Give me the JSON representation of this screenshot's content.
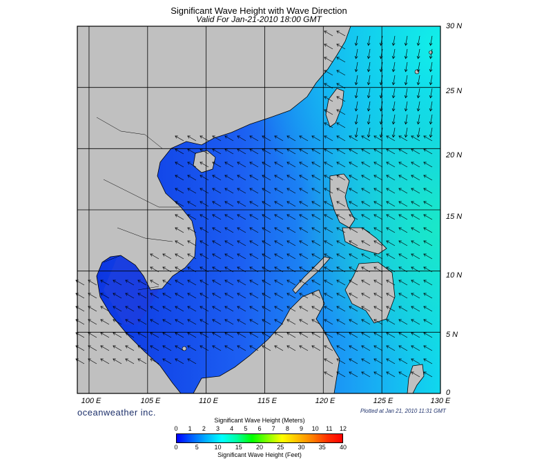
{
  "header": {
    "title": "Significant Wave Height with Wave Direction",
    "subtitle": "Valid For Jan-21-2010 18:00 GMT"
  },
  "map": {
    "lon_range": [
      99,
      130
    ],
    "lat_range": [
      0,
      30
    ],
    "grid_step": 5,
    "land_color": "#c0c0c0",
    "ocean_color": "#1c58f0",
    "lat_labels": [
      "30 N",
      "25 N",
      "20 N",
      "15 N",
      "10 N",
      "5 N",
      "0"
    ],
    "lon_labels": [
      "100 E",
      "105 E",
      "110 E",
      "115 E",
      "120 E",
      "125 E",
      "130 E"
    ]
  },
  "footer": {
    "brand": "oceanweather inc.",
    "plotted": "Plotted at Jan 21, 2010 11:31 GMT"
  },
  "colorbar": {
    "title_meters": "Significant Wave Height (Meters)",
    "title_feet": "Significant Wave Height (Feet)",
    "meter_ticks": [
      "0",
      "1",
      "2",
      "3",
      "4",
      "5",
      "6",
      "7",
      "8",
      "9",
      "10",
      "11",
      "12"
    ],
    "feet_ticks": [
      "0",
      "5",
      "10",
      "15",
      "20",
      "25",
      "30",
      "35",
      "40"
    ],
    "colors": [
      "#0000ff",
      "#0060ff",
      "#00b4ff",
      "#00ffff",
      "#00ffa0",
      "#00ff00",
      "#80ff00",
      "#ffff00",
      "#ffc000",
      "#ff8000",
      "#ff3000",
      "#ff0000"
    ]
  }
}
